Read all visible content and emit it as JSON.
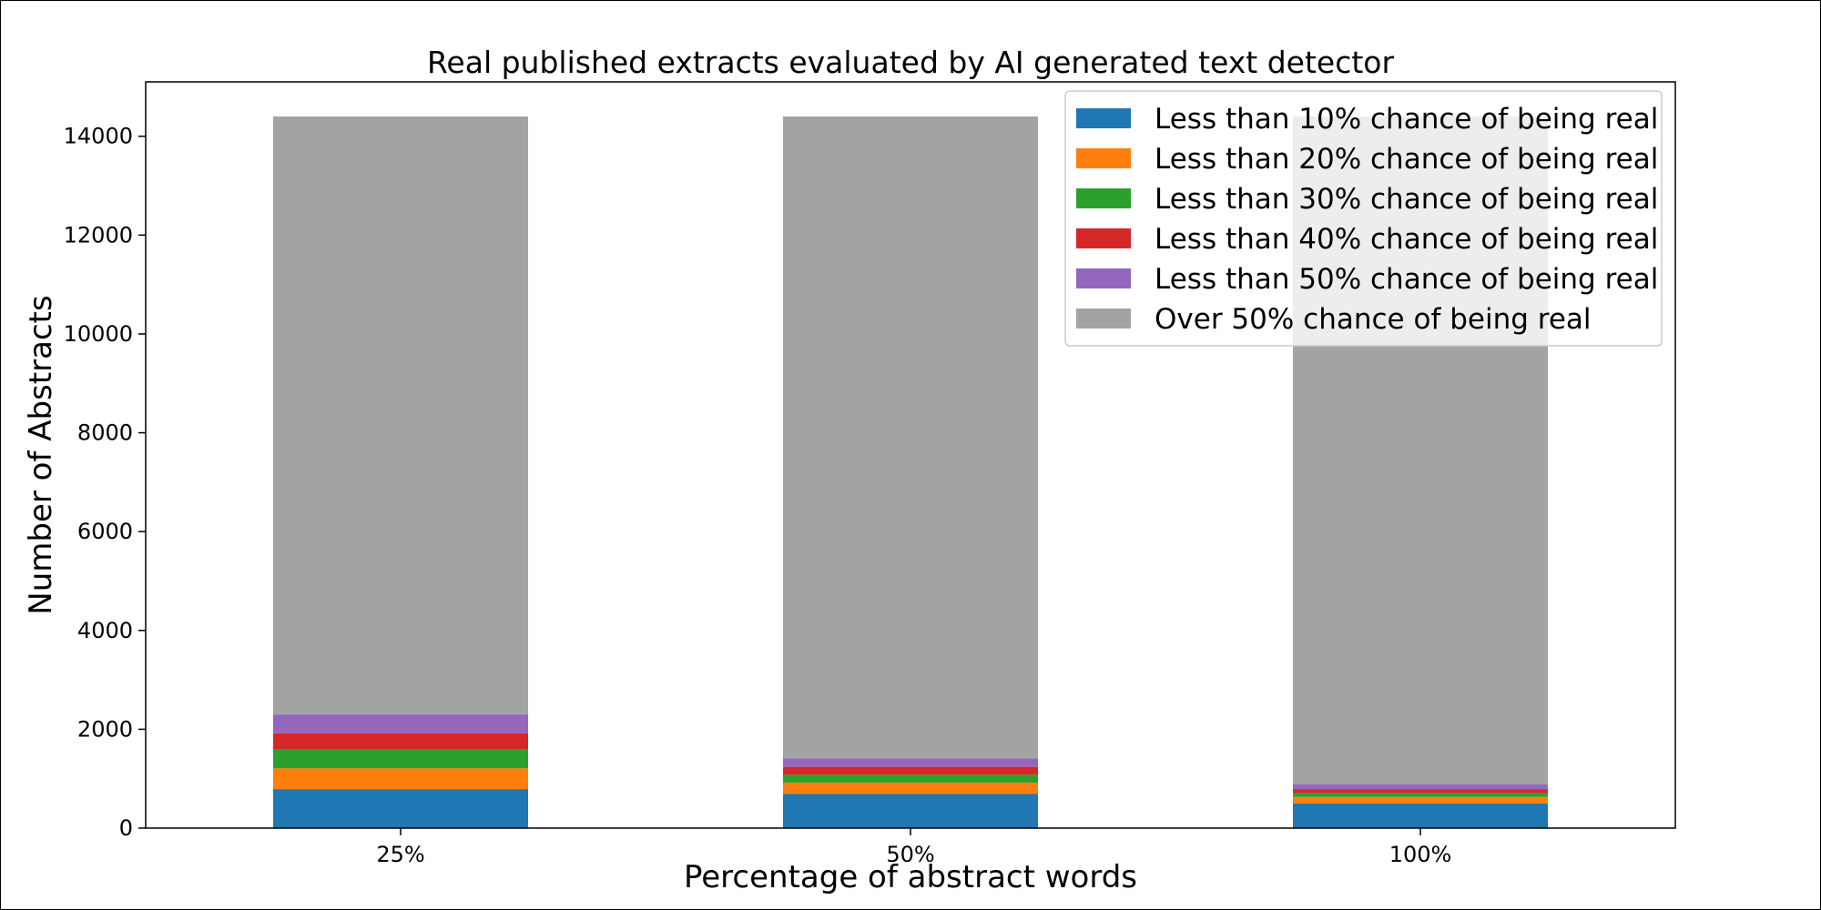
{
  "chart_data": {
    "type": "bar",
    "stacked": true,
    "title": "Real published extracts evaluated by AI generated text detector",
    "xlabel": "Percentage of abstract words",
    "ylabel": "Number of Abstracts",
    "categories": [
      "25%",
      "50%",
      "100%"
    ],
    "ylim": [
      0,
      15100
    ],
    "yticks": [
      0,
      2000,
      4000,
      6000,
      8000,
      10000,
      12000,
      14000
    ],
    "ytick_labels": [
      "0",
      "2000",
      "4000",
      "6000",
      "8000",
      "10000",
      "12000",
      "14000"
    ],
    "grid": false,
    "legend_position": "top-right",
    "series": [
      {
        "name": "Less than 10% chance of being real",
        "color": "#1f77b4",
        "values": [
          790,
          690,
          500
        ]
      },
      {
        "name": "Less than 20% chance of being real",
        "color": "#ff7f0e",
        "values": [
          420,
          230,
          130
        ]
      },
      {
        "name": "Less than 30% chance of being real",
        "color": "#2ca02c",
        "values": [
          380,
          160,
          80
        ]
      },
      {
        "name": "Less than 40% chance of being real",
        "color": "#d62728",
        "values": [
          330,
          160,
          80
        ]
      },
      {
        "name": "Less than 50% chance of being real",
        "color": "#9467bd",
        "values": [
          380,
          170,
          100
        ]
      },
      {
        "name": "Over 50% chance of being real",
        "color": "#a3a3a3",
        "values": [
          12100,
          12990,
          13510
        ]
      }
    ]
  }
}
